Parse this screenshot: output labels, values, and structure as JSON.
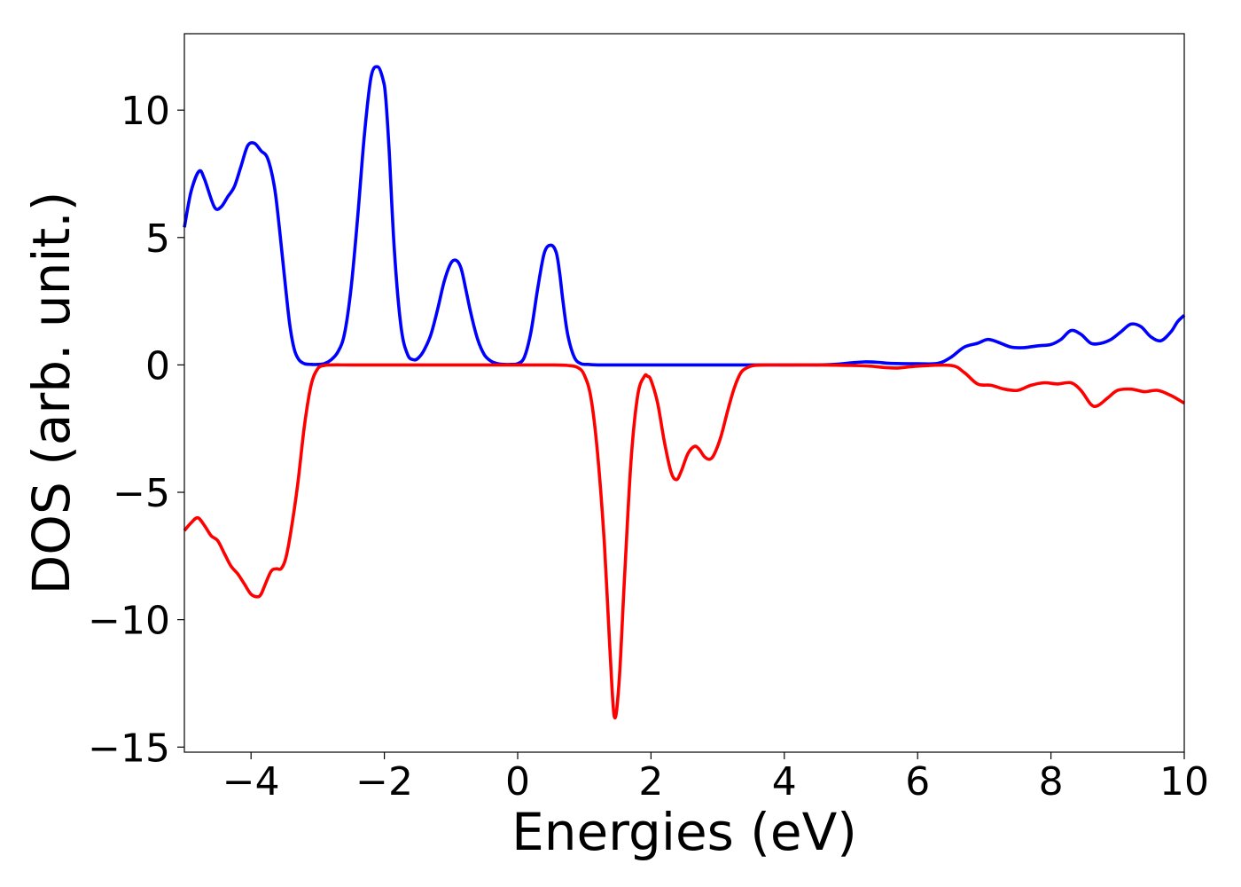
{
  "chart_data": {
    "type": "line",
    "title": "",
    "xlabel": "Energies (eV)",
    "ylabel": "DOS (arb. unit.)",
    "xlim": [
      -5,
      10
    ],
    "ylim": [
      -15.2,
      13.0
    ],
    "grid": false,
    "legend": "none",
    "x_ticks": [
      -4,
      -2,
      0,
      2,
      4,
      6,
      8,
      10
    ],
    "x_tick_labels": [
      "−4",
      "−2",
      "0",
      "2",
      "4",
      "6",
      "8",
      "10"
    ],
    "y_ticks": [
      10,
      5,
      0,
      -5,
      -10,
      -15
    ],
    "y_tick_labels": [
      "10",
      "5",
      "0",
      "−5",
      "−10",
      "−15"
    ],
    "series": [
      {
        "color": "#0000ff",
        "x": [
          -5.0,
          -4.9,
          -4.78,
          -4.7,
          -4.55,
          -4.45,
          -4.35,
          -4.25,
          -4.15,
          -4.05,
          -3.95,
          -3.85,
          -3.75,
          -3.65,
          -3.58,
          -3.5,
          -3.42,
          -3.35,
          -3.28,
          -3.2,
          -3.1,
          -3.0,
          -2.9,
          -2.8,
          -2.7,
          -2.6,
          -2.5,
          -2.4,
          -2.3,
          -2.2,
          -2.1,
          -2.02,
          -1.98,
          -1.93,
          -1.85,
          -1.75,
          -1.65,
          -1.55,
          -1.48,
          -1.4,
          -1.3,
          -1.2,
          -1.1,
          -1.0,
          -0.92,
          -0.85,
          -0.78,
          -0.7,
          -0.6,
          -0.5,
          -0.4,
          -0.3,
          -0.2,
          -0.1,
          0.0,
          0.1,
          0.2,
          0.3,
          0.4,
          0.5,
          0.58,
          0.63,
          0.68,
          0.75,
          0.85,
          0.95,
          1.05,
          1.2,
          1.5,
          2.0,
          3.0,
          4.0,
          4.5,
          4.8,
          5.0,
          5.2,
          5.4,
          5.6,
          6.0,
          6.3,
          6.5,
          6.7,
          6.9,
          7.05,
          7.2,
          7.4,
          7.6,
          7.8,
          8.0,
          8.15,
          8.3,
          8.45,
          8.6,
          8.75,
          8.9,
          9.05,
          9.2,
          9.35,
          9.5,
          9.65,
          9.8,
          9.9,
          10.0
        ],
        "y": [
          5.4,
          6.8,
          7.6,
          7.3,
          6.2,
          6.2,
          6.6,
          7.0,
          7.8,
          8.6,
          8.7,
          8.4,
          8.1,
          7.0,
          5.5,
          3.5,
          1.6,
          0.6,
          0.2,
          0.05,
          0.02,
          0.02,
          0.05,
          0.2,
          0.5,
          1.2,
          3.0,
          5.8,
          9.0,
          11.3,
          11.7,
          11.2,
          10.5,
          8.5,
          4.5,
          1.5,
          0.4,
          0.2,
          0.3,
          0.6,
          1.2,
          2.2,
          3.3,
          4.0,
          4.1,
          3.8,
          3.0,
          2.0,
          1.0,
          0.4,
          0.15,
          0.05,
          0.02,
          0.02,
          0.05,
          0.3,
          1.3,
          3.0,
          4.4,
          4.7,
          4.4,
          3.6,
          2.5,
          1.2,
          0.3,
          0.05,
          0.02,
          0.0,
          0.0,
          0.0,
          0.0,
          0.0,
          0.0,
          0.03,
          0.08,
          0.12,
          0.1,
          0.06,
          0.05,
          0.06,
          0.3,
          0.7,
          0.85,
          1.0,
          0.9,
          0.7,
          0.68,
          0.75,
          0.8,
          1.0,
          1.35,
          1.2,
          0.85,
          0.85,
          1.0,
          1.3,
          1.6,
          1.5,
          1.1,
          0.95,
          1.3,
          1.7,
          1.95
        ]
      },
      {
        "color": "#ff0000",
        "x": [
          -5.0,
          -4.9,
          -4.8,
          -4.7,
          -4.6,
          -4.5,
          -4.4,
          -4.3,
          -4.2,
          -4.1,
          -4.0,
          -3.9,
          -3.85,
          -3.8,
          -3.7,
          -3.62,
          -3.55,
          -3.48,
          -3.4,
          -3.3,
          -3.2,
          -3.1,
          -3.0,
          -2.9,
          -2.8,
          -2.5,
          -2.0,
          -1.0,
          0.0,
          0.5,
          0.75,
          0.9,
          1.0,
          1.1,
          1.2,
          1.3,
          1.38,
          1.45,
          1.52,
          1.6,
          1.7,
          1.8,
          1.9,
          1.95,
          2.0,
          2.1,
          2.2,
          2.3,
          2.38,
          2.45,
          2.55,
          2.65,
          2.72,
          2.8,
          2.88,
          2.95,
          3.05,
          3.15,
          3.25,
          3.35,
          3.45,
          3.55,
          3.7,
          4.0,
          4.5,
          5.0,
          5.3,
          5.5,
          5.7,
          6.0,
          6.5,
          6.7,
          6.9,
          7.1,
          7.3,
          7.5,
          7.7,
          7.9,
          8.1,
          8.3,
          8.45,
          8.6,
          8.7,
          8.85,
          9.0,
          9.2,
          9.4,
          9.6,
          9.8,
          10.0
        ],
        "y": [
          -6.5,
          -6.2,
          -6.0,
          -6.3,
          -6.7,
          -6.9,
          -7.4,
          -7.9,
          -8.2,
          -8.6,
          -9.0,
          -9.1,
          -9.0,
          -8.7,
          -8.1,
          -8.0,
          -8.0,
          -7.6,
          -6.5,
          -4.7,
          -2.4,
          -0.8,
          -0.15,
          -0.02,
          0.0,
          0.0,
          0.0,
          0.0,
          0.0,
          0.0,
          -0.02,
          -0.1,
          -0.4,
          -1.3,
          -3.5,
          -7.0,
          -11.0,
          -13.8,
          -12.5,
          -8.5,
          -3.8,
          -1.2,
          -0.45,
          -0.45,
          -0.6,
          -1.5,
          -3.0,
          -4.2,
          -4.5,
          -4.2,
          -3.5,
          -3.2,
          -3.3,
          -3.6,
          -3.7,
          -3.5,
          -2.8,
          -1.8,
          -0.9,
          -0.3,
          -0.1,
          -0.02,
          0.0,
          0.0,
          0.0,
          -0.02,
          -0.05,
          -0.1,
          -0.12,
          -0.05,
          -0.02,
          -0.3,
          -0.75,
          -0.8,
          -0.95,
          -1.0,
          -0.8,
          -0.7,
          -0.75,
          -0.7,
          -1.0,
          -1.55,
          -1.6,
          -1.3,
          -1.0,
          -0.95,
          -1.05,
          -1.0,
          -1.2,
          -1.5
        ]
      }
    ]
  }
}
